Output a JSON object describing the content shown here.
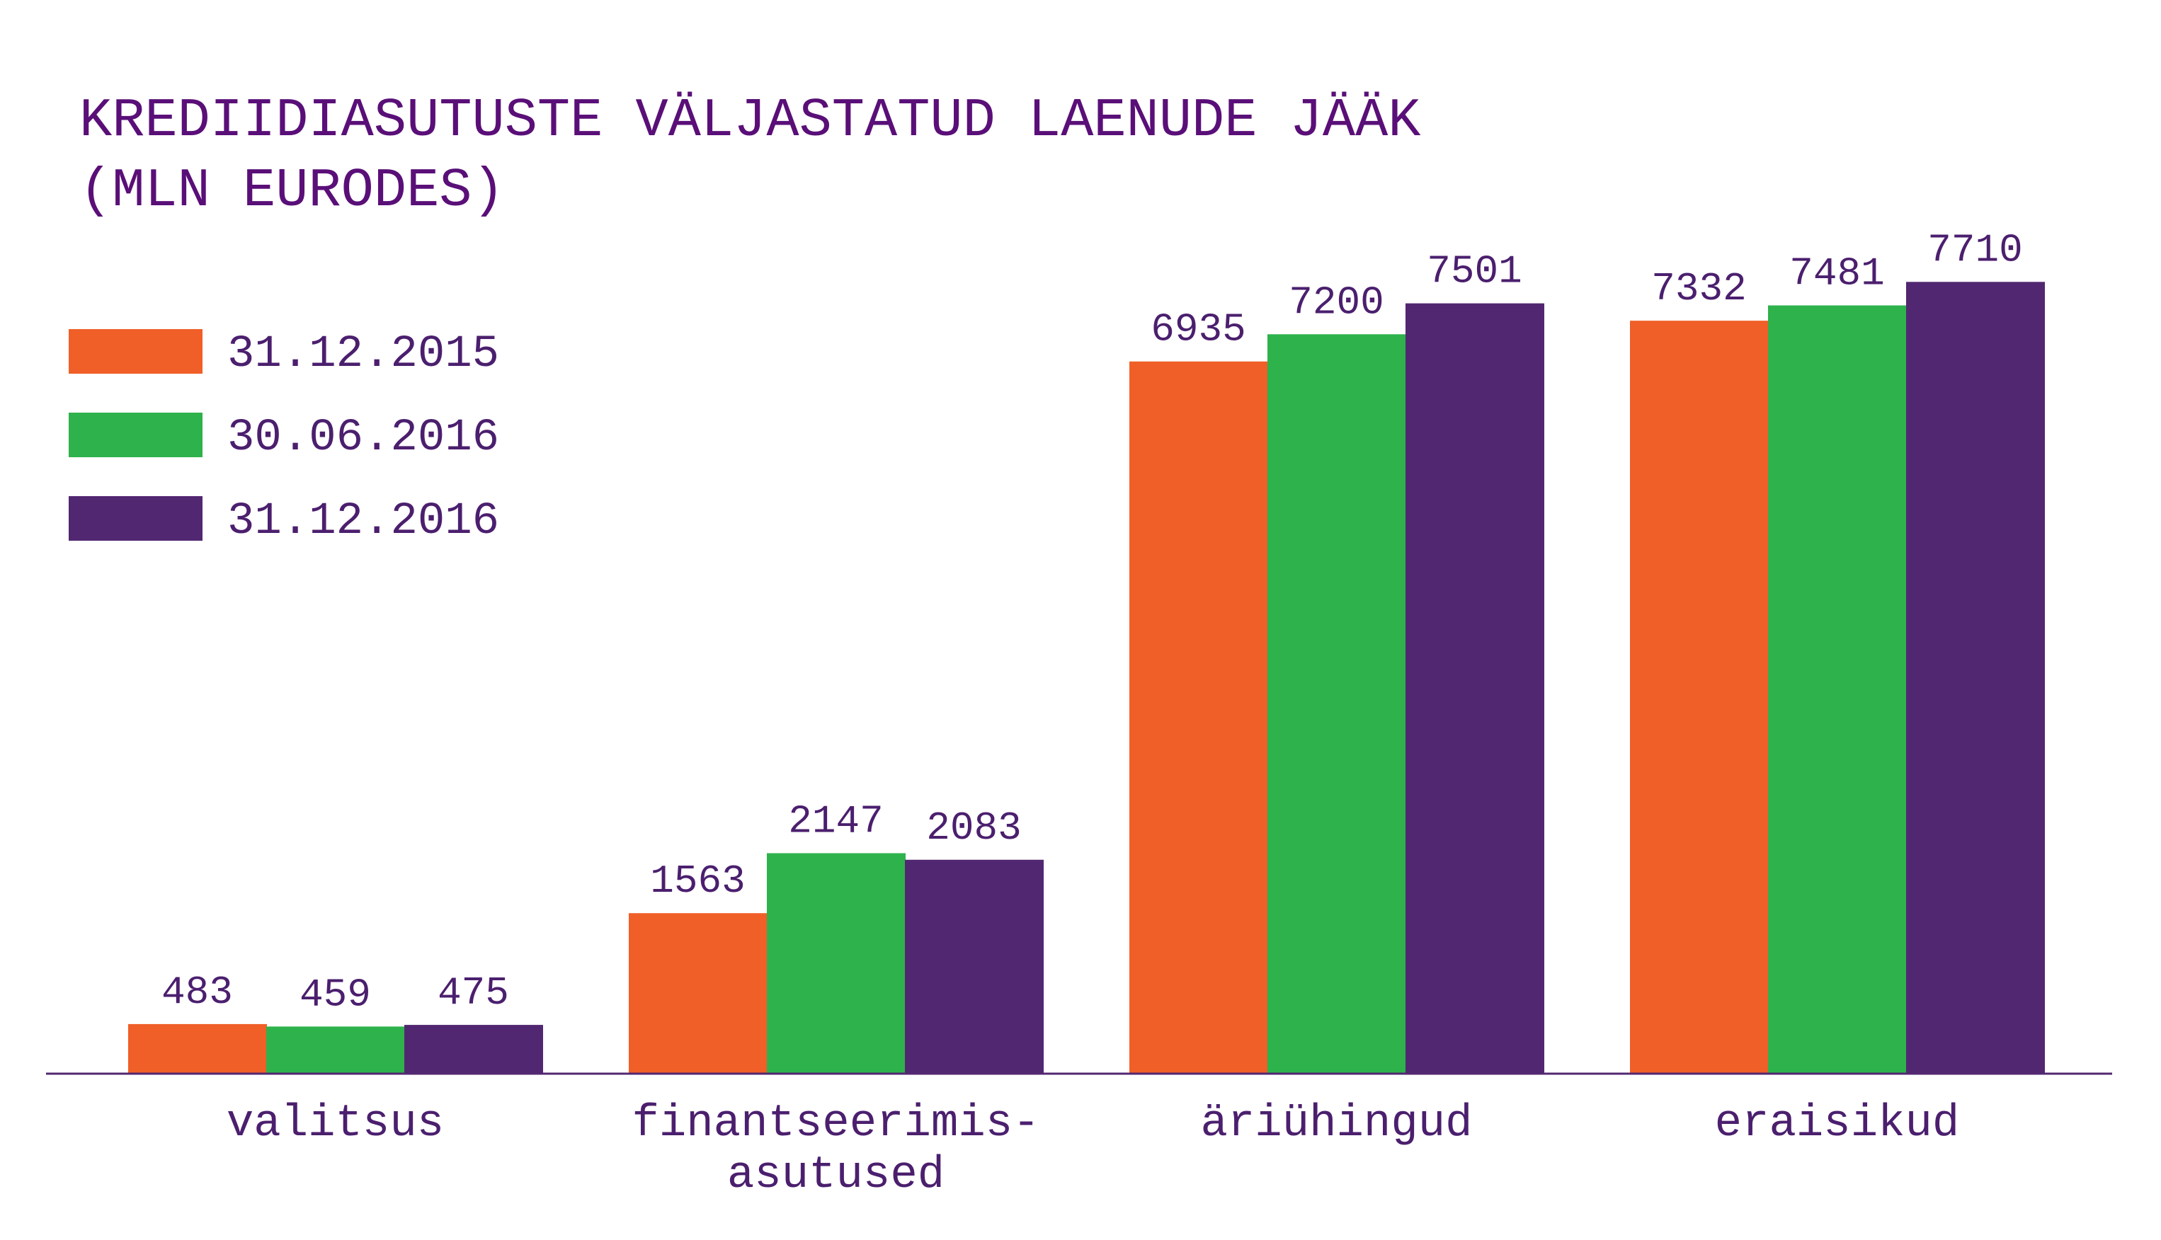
{
  "chart_data": {
    "type": "bar",
    "title": "KREDIIDIASUTUSTE VÄLJASTATUD LAENUDE JÄÄK",
    "subtitle": "(MLN EURODES)",
    "categories": [
      [
        "valitsus"
      ],
      [
        "finantseerimis-",
        "asutused"
      ],
      [
        "äriühingud"
      ],
      [
        "eraisikud"
      ]
    ],
    "series": [
      {
        "name": "31.12.2015",
        "color": "#f05f28",
        "values": [
          483,
          1563,
          6935,
          7332
        ]
      },
      {
        "name": "30.06.2016",
        "color": "#2eb24c",
        "values": [
          459,
          2147,
          7200,
          7481
        ]
      },
      {
        "name": "31.12.2016",
        "color": "#522771",
        "values": [
          475,
          2083,
          7501,
          7710
        ]
      }
    ],
    "xlabel": "",
    "ylabel": "",
    "ylim": [
      0,
      8000
    ],
    "grid": false,
    "legend": "top-left",
    "data_labels": true
  }
}
